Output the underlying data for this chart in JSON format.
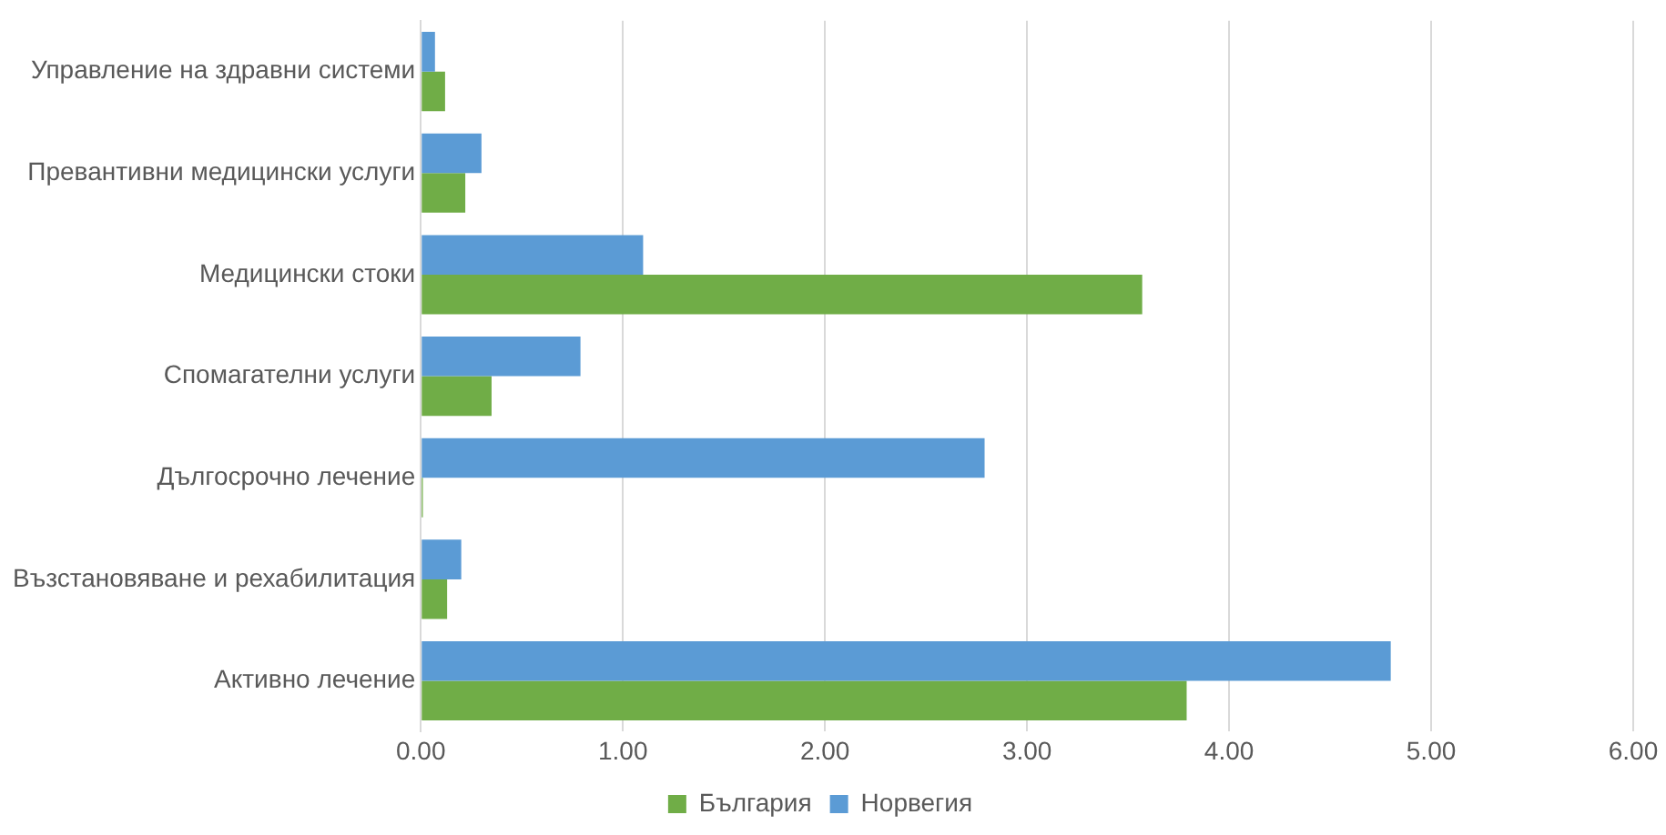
{
  "chart_data": {
    "type": "bar",
    "orientation": "horizontal",
    "categories": [
      "Управление на здравни системи",
      "Превантивни медицински услуги",
      "Медицински стоки",
      "Спомагателни услуги",
      "Дългосрочно лечение",
      "Възстановяване и рехабилитация",
      "Активно лечение"
    ],
    "series": [
      {
        "name": "Норвегия",
        "color": "#5b9bd5",
        "values": [
          0.07,
          0.3,
          1.1,
          0.79,
          2.79,
          0.2,
          4.8
        ]
      },
      {
        "name": "България",
        "color": "#70ad47",
        "values": [
          0.12,
          0.22,
          3.57,
          0.35,
          0.01,
          0.13,
          3.79
        ]
      }
    ],
    "xlim": [
      0,
      6
    ],
    "xticks": [
      {
        "value": 0,
        "label": "0.00"
      },
      {
        "value": 1,
        "label": "1.00"
      },
      {
        "value": 2,
        "label": "2.00"
      },
      {
        "value": 3,
        "label": "3.00"
      },
      {
        "value": 4,
        "label": "4.00"
      },
      {
        "value": 5,
        "label": "5.00"
      },
      {
        "value": 6,
        "label": "6.00"
      }
    ],
    "grid": "x",
    "legend": "bottom"
  }
}
